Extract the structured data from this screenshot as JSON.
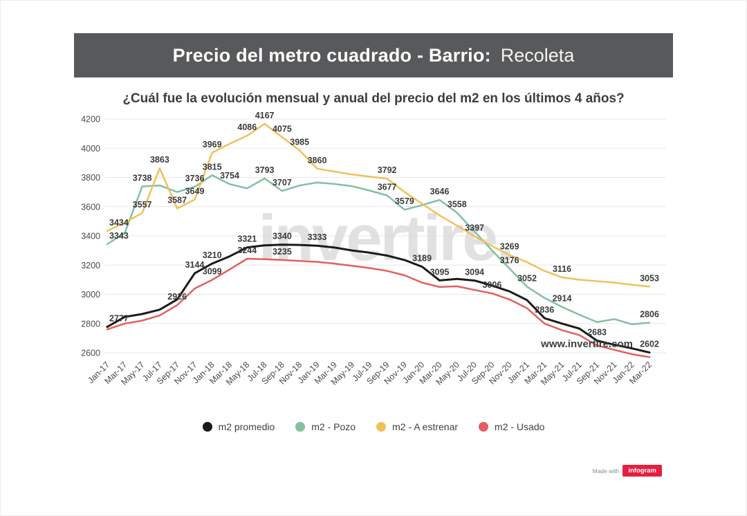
{
  "header": {
    "title_bold": "Precio del metro cuadrado - Barrio:",
    "title_light": "Recoleta",
    "bg_color": "#58595a"
  },
  "subtitle": "¿Cuál fue la evolución mensual y anual del precio del m2 en los últimos 4 años?",
  "watermark": "invertire.",
  "site_link": "www.invertire.com",
  "badge": {
    "made_with": "Made with",
    "brand": "infogram",
    "color": "#e61e41"
  },
  "chart_data": {
    "type": "line",
    "title": "Precio del metro cuadrado - Barrio: Recoleta",
    "xlabel": "",
    "ylabel": "",
    "ylim": [
      2600,
      4200
    ],
    "ytick_step": 200,
    "grid": true,
    "legend_position": "bottom",
    "categories": [
      "Jan-17",
      "Mar-17",
      "May-17",
      "Jul-17",
      "Sep-17",
      "Nov-17",
      "Jan-18",
      "Mar-18",
      "May-18",
      "Jul-18",
      "Sep-18",
      "Nov-18",
      "Jan-19",
      "Mar-19",
      "May-19",
      "Jul-19",
      "Sep-19",
      "Nov-19",
      "Jan-20",
      "Mar-20",
      "May-20",
      "Jul-20",
      "Sep-20",
      "Nov-20",
      "Jan-21",
      "Mar-21",
      "May-21",
      "Jul-21",
      "Sep-21",
      "Nov-21",
      "Jan-22",
      "Mar-22"
    ],
    "series": [
      {
        "name": "m2 promedio",
        "color": "#1a1a1a",
        "values": [
          2777,
          2845,
          2865,
          2895,
          2965,
          3144,
          3210,
          3260,
          3321,
          3335,
          3340,
          3338,
          3333,
          3320,
          3300,
          3285,
          3265,
          3235,
          3189,
          3095,
          3105,
          3094,
          3060,
          3020,
          2960,
          2836,
          2800,
          2765,
          2683,
          2655,
          2630,
          2602
        ],
        "label_points": [
          0,
          5,
          6,
          8,
          10,
          12,
          18,
          19,
          21,
          25,
          28,
          31
        ]
      },
      {
        "name": "m2 - Pozo",
        "color": "#82c09f",
        "values": [
          3343,
          3420,
          3738,
          3745,
          3700,
          3736,
          3815,
          3754,
          3725,
          3793,
          3707,
          3745,
          3765,
          3755,
          3740,
          3710,
          3677,
          3579,
          3610,
          3646,
          3558,
          3430,
          3300,
          3176,
          3052,
          2975,
          2914,
          2860,
          2810,
          2830,
          2795,
          2806
        ],
        "label_points": [
          0,
          2,
          5,
          6,
          7,
          9,
          10,
          16,
          17,
          19,
          20,
          23,
          24,
          26,
          31
        ]
      },
      {
        "name": "m2 - A estrenar",
        "color": "#efc15c",
        "values": [
          3434,
          3490,
          3557,
          3863,
          3587,
          3649,
          3969,
          4030,
          4086,
          4167,
          4075,
          3985,
          3860,
          3840,
          3820,
          3805,
          3792,
          3700,
          3620,
          3540,
          3470,
          3397,
          3330,
          3269,
          3220,
          3160,
          3116,
          3100,
          3090,
          3080,
          3065,
          3053
        ],
        "label_points": [
          0,
          2,
          3,
          4,
          5,
          6,
          8,
          9,
          10,
          11,
          12,
          16,
          21,
          23,
          26,
          31
        ]
      },
      {
        "name": "m2 - Usado",
        "color": "#e25f5f",
        "values": [
          2760,
          2800,
          2820,
          2855,
          2926,
          3040,
          3099,
          3170,
          3244,
          3240,
          3235,
          3228,
          3222,
          3210,
          3195,
          3180,
          3160,
          3130,
          3080,
          3050,
          3055,
          3030,
          3006,
          2965,
          2905,
          2800,
          2755,
          2720,
          2650,
          2620,
          2590,
          2570
        ],
        "label_points": [
          4,
          6,
          8,
          10,
          22
        ]
      }
    ]
  }
}
